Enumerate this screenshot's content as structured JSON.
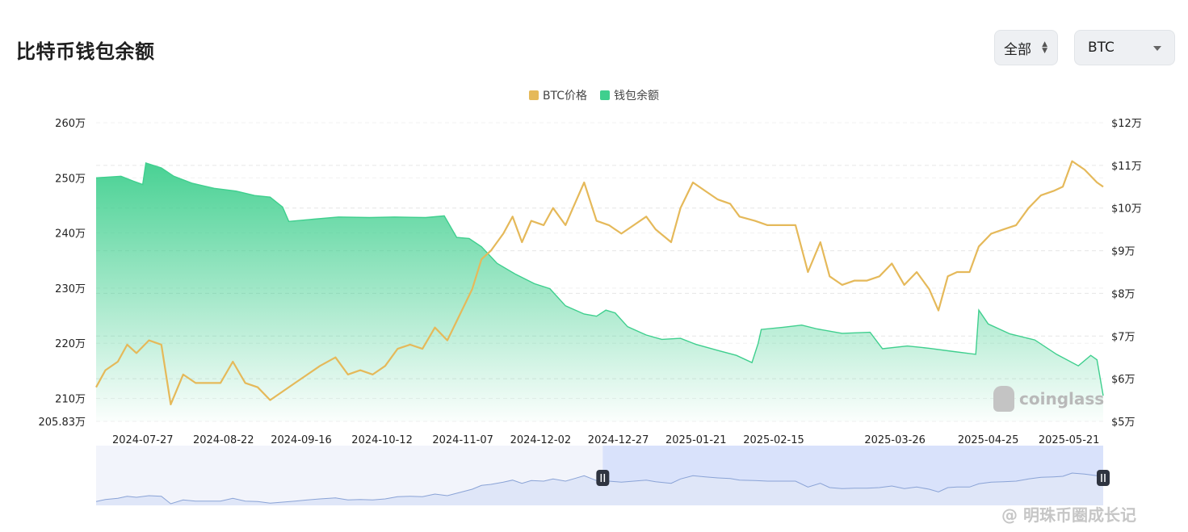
{
  "header": {
    "title": "比特币钱包余额"
  },
  "controls": {
    "range_label": "全部",
    "asset_label": "BTC"
  },
  "watermarks": {
    "chart_brand": "coinglass",
    "source": "@ 明珠币圈成长记"
  },
  "chart_data": {
    "type": "line",
    "title": "比特币钱包余额",
    "legend_position": "top-center",
    "grid": true,
    "x_ticks": [
      "2024-07-27",
      "2024-08-22",
      "2024-09-16",
      "2024-10-12",
      "2024-11-07",
      "2024-12-02",
      "2024-12-27",
      "2025-01-21",
      "2025-02-15",
      "2025-03-26",
      "2025-04-25",
      "2025-05-21"
    ],
    "y_left": {
      "ticks": [
        "260万",
        "250万",
        "240万",
        "230万",
        "220万",
        "210万",
        "205.83万"
      ],
      "range": [
        205.83,
        260
      ],
      "unit": "万"
    },
    "y_right": {
      "ticks": [
        "$12万",
        "$11万",
        "$10万",
        "$9万",
        "$8万",
        "$7万",
        "$6万",
        "$5万"
      ],
      "range": [
        5,
        12
      ],
      "unit": "$万"
    },
    "x_range": [
      "2024-07-12",
      "2025-06-01"
    ],
    "series": [
      {
        "name": "BTC价格",
        "axis": "right",
        "color": "#e5b95a",
        "style": "line",
        "points": [
          [
            "2024-07-12",
            5.8
          ],
          [
            "2024-07-15",
            6.2
          ],
          [
            "2024-07-19",
            6.4
          ],
          [
            "2024-07-22",
            6.8
          ],
          [
            "2024-07-25",
            6.6
          ],
          [
            "2024-07-29",
            6.9
          ],
          [
            "2024-08-02",
            6.8
          ],
          [
            "2024-08-05",
            5.4
          ],
          [
            "2024-08-09",
            6.1
          ],
          [
            "2024-08-13",
            5.9
          ],
          [
            "2024-08-17",
            5.9
          ],
          [
            "2024-08-21",
            5.9
          ],
          [
            "2024-08-25",
            6.4
          ],
          [
            "2024-08-29",
            5.9
          ],
          [
            "2024-09-02",
            5.8
          ],
          [
            "2024-09-06",
            5.5
          ],
          [
            "2024-09-10",
            5.7
          ],
          [
            "2024-09-14",
            5.9
          ],
          [
            "2024-09-18",
            6.1
          ],
          [
            "2024-09-22",
            6.3
          ],
          [
            "2024-09-27",
            6.5
          ],
          [
            "2024-10-01",
            6.1
          ],
          [
            "2024-10-05",
            6.2
          ],
          [
            "2024-10-09",
            6.1
          ],
          [
            "2024-10-13",
            6.3
          ],
          [
            "2024-10-17",
            6.7
          ],
          [
            "2024-10-21",
            6.8
          ],
          [
            "2024-10-25",
            6.7
          ],
          [
            "2024-10-29",
            7.2
          ],
          [
            "2024-11-02",
            6.9
          ],
          [
            "2024-11-06",
            7.5
          ],
          [
            "2024-11-10",
            8.1
          ],
          [
            "2024-11-13",
            8.8
          ],
          [
            "2024-11-16",
            9.0
          ],
          [
            "2024-11-20",
            9.4
          ],
          [
            "2024-11-23",
            9.8
          ],
          [
            "2024-11-26",
            9.2
          ],
          [
            "2024-11-29",
            9.7
          ],
          [
            "2024-12-03",
            9.6
          ],
          [
            "2024-12-06",
            10.0
          ],
          [
            "2024-12-10",
            9.6
          ],
          [
            "2024-12-13",
            10.1
          ],
          [
            "2024-12-16",
            10.6
          ],
          [
            "2024-12-20",
            9.7
          ],
          [
            "2024-12-24",
            9.6
          ],
          [
            "2024-12-28",
            9.4
          ],
          [
            "2025-01-01",
            9.6
          ],
          [
            "2025-01-05",
            9.8
          ],
          [
            "2025-01-08",
            9.5
          ],
          [
            "2025-01-13",
            9.2
          ],
          [
            "2025-01-16",
            10.0
          ],
          [
            "2025-01-20",
            10.6
          ],
          [
            "2025-01-24",
            10.4
          ],
          [
            "2025-01-28",
            10.2
          ],
          [
            "2025-02-01",
            10.1
          ],
          [
            "2025-02-04",
            9.8
          ],
          [
            "2025-02-09",
            9.7
          ],
          [
            "2025-02-13",
            9.6
          ],
          [
            "2025-02-18",
            9.6
          ],
          [
            "2025-02-22",
            9.6
          ],
          [
            "2025-02-26",
            8.5
          ],
          [
            "2025-03-02",
            9.2
          ],
          [
            "2025-03-05",
            8.4
          ],
          [
            "2025-03-09",
            8.2
          ],
          [
            "2025-03-13",
            8.3
          ],
          [
            "2025-03-17",
            8.3
          ],
          [
            "2025-03-21",
            8.4
          ],
          [
            "2025-03-25",
            8.7
          ],
          [
            "2025-03-29",
            8.2
          ],
          [
            "2025-04-02",
            8.5
          ],
          [
            "2025-04-06",
            8.1
          ],
          [
            "2025-04-09",
            7.6
          ],
          [
            "2025-04-12",
            8.4
          ],
          [
            "2025-04-15",
            8.5
          ],
          [
            "2025-04-19",
            8.5
          ],
          [
            "2025-04-22",
            9.1
          ],
          [
            "2025-04-26",
            9.4
          ],
          [
            "2025-04-30",
            9.5
          ],
          [
            "2025-05-04",
            9.6
          ],
          [
            "2025-05-08",
            10.0
          ],
          [
            "2025-05-12",
            10.3
          ],
          [
            "2025-05-16",
            10.4
          ],
          [
            "2025-05-19",
            10.5
          ],
          [
            "2025-05-22",
            11.1
          ],
          [
            "2025-05-26",
            10.9
          ],
          [
            "2025-05-30",
            10.6
          ],
          [
            "2025-06-01",
            10.5
          ]
        ]
      },
      {
        "name": "钱包余额",
        "axis": "left",
        "color": "#3fcf8e",
        "style": "area",
        "points": [
          [
            "2024-07-12",
            250.0
          ],
          [
            "2024-07-20",
            250.3
          ],
          [
            "2024-07-24",
            249.4
          ],
          [
            "2024-07-27",
            248.8
          ],
          [
            "2024-07-28",
            252.7
          ],
          [
            "2024-08-02",
            251.8
          ],
          [
            "2024-08-06",
            250.3
          ],
          [
            "2024-08-12",
            249.0
          ],
          [
            "2024-08-19",
            248.1
          ],
          [
            "2024-08-26",
            247.6
          ],
          [
            "2024-09-01",
            246.8
          ],
          [
            "2024-09-06",
            246.5
          ],
          [
            "2024-09-10",
            244.7
          ],
          [
            "2024-09-12",
            242.1
          ],
          [
            "2024-09-20",
            242.5
          ],
          [
            "2024-09-28",
            242.9
          ],
          [
            "2024-10-08",
            242.8
          ],
          [
            "2024-10-16",
            242.9
          ],
          [
            "2024-10-26",
            242.8
          ],
          [
            "2024-11-01",
            243.1
          ],
          [
            "2024-11-05",
            239.2
          ],
          [
            "2024-11-09",
            239.0
          ],
          [
            "2024-11-13",
            237.5
          ],
          [
            "2024-11-18",
            234.5
          ],
          [
            "2024-11-24",
            232.5
          ],
          [
            "2024-11-30",
            230.8
          ],
          [
            "2024-12-05",
            229.9
          ],
          [
            "2024-12-10",
            226.8
          ],
          [
            "2024-12-16",
            225.3
          ],
          [
            "2024-12-20",
            224.9
          ],
          [
            "2024-12-23",
            226.0
          ],
          [
            "2024-12-26",
            225.5
          ],
          [
            "2024-12-30",
            223.0
          ],
          [
            "2025-01-05",
            221.5
          ],
          [
            "2025-01-10",
            220.7
          ],
          [
            "2025-01-16",
            220.9
          ],
          [
            "2025-01-21",
            219.8
          ],
          [
            "2025-01-28",
            218.7
          ],
          [
            "2025-02-03",
            217.8
          ],
          [
            "2025-02-08",
            216.5
          ],
          [
            "2025-02-10",
            220.0
          ],
          [
            "2025-02-11",
            222.5
          ],
          [
            "2025-02-18",
            222.9
          ],
          [
            "2025-02-24",
            223.3
          ],
          [
            "2025-03-01",
            222.6
          ],
          [
            "2025-03-09",
            221.8
          ],
          [
            "2025-03-18",
            222.0
          ],
          [
            "2025-03-22",
            219.0
          ],
          [
            "2025-03-30",
            219.5
          ],
          [
            "2025-04-06",
            219.1
          ],
          [
            "2025-04-14",
            218.5
          ],
          [
            "2025-04-21",
            218.0
          ],
          [
            "2025-04-22",
            226.0
          ],
          [
            "2025-04-25",
            223.5
          ],
          [
            "2025-05-02",
            221.7
          ],
          [
            "2025-05-10",
            220.6
          ],
          [
            "2025-05-17",
            218.0
          ],
          [
            "2025-05-24",
            215.9
          ],
          [
            "2025-05-28",
            217.8
          ],
          [
            "2025-05-30",
            217.0
          ],
          [
            "2025-06-01",
            210.5
          ]
        ]
      }
    ],
    "navigator": {
      "selected_range": [
        "2024-12-22",
        "2025-06-01"
      ]
    }
  }
}
